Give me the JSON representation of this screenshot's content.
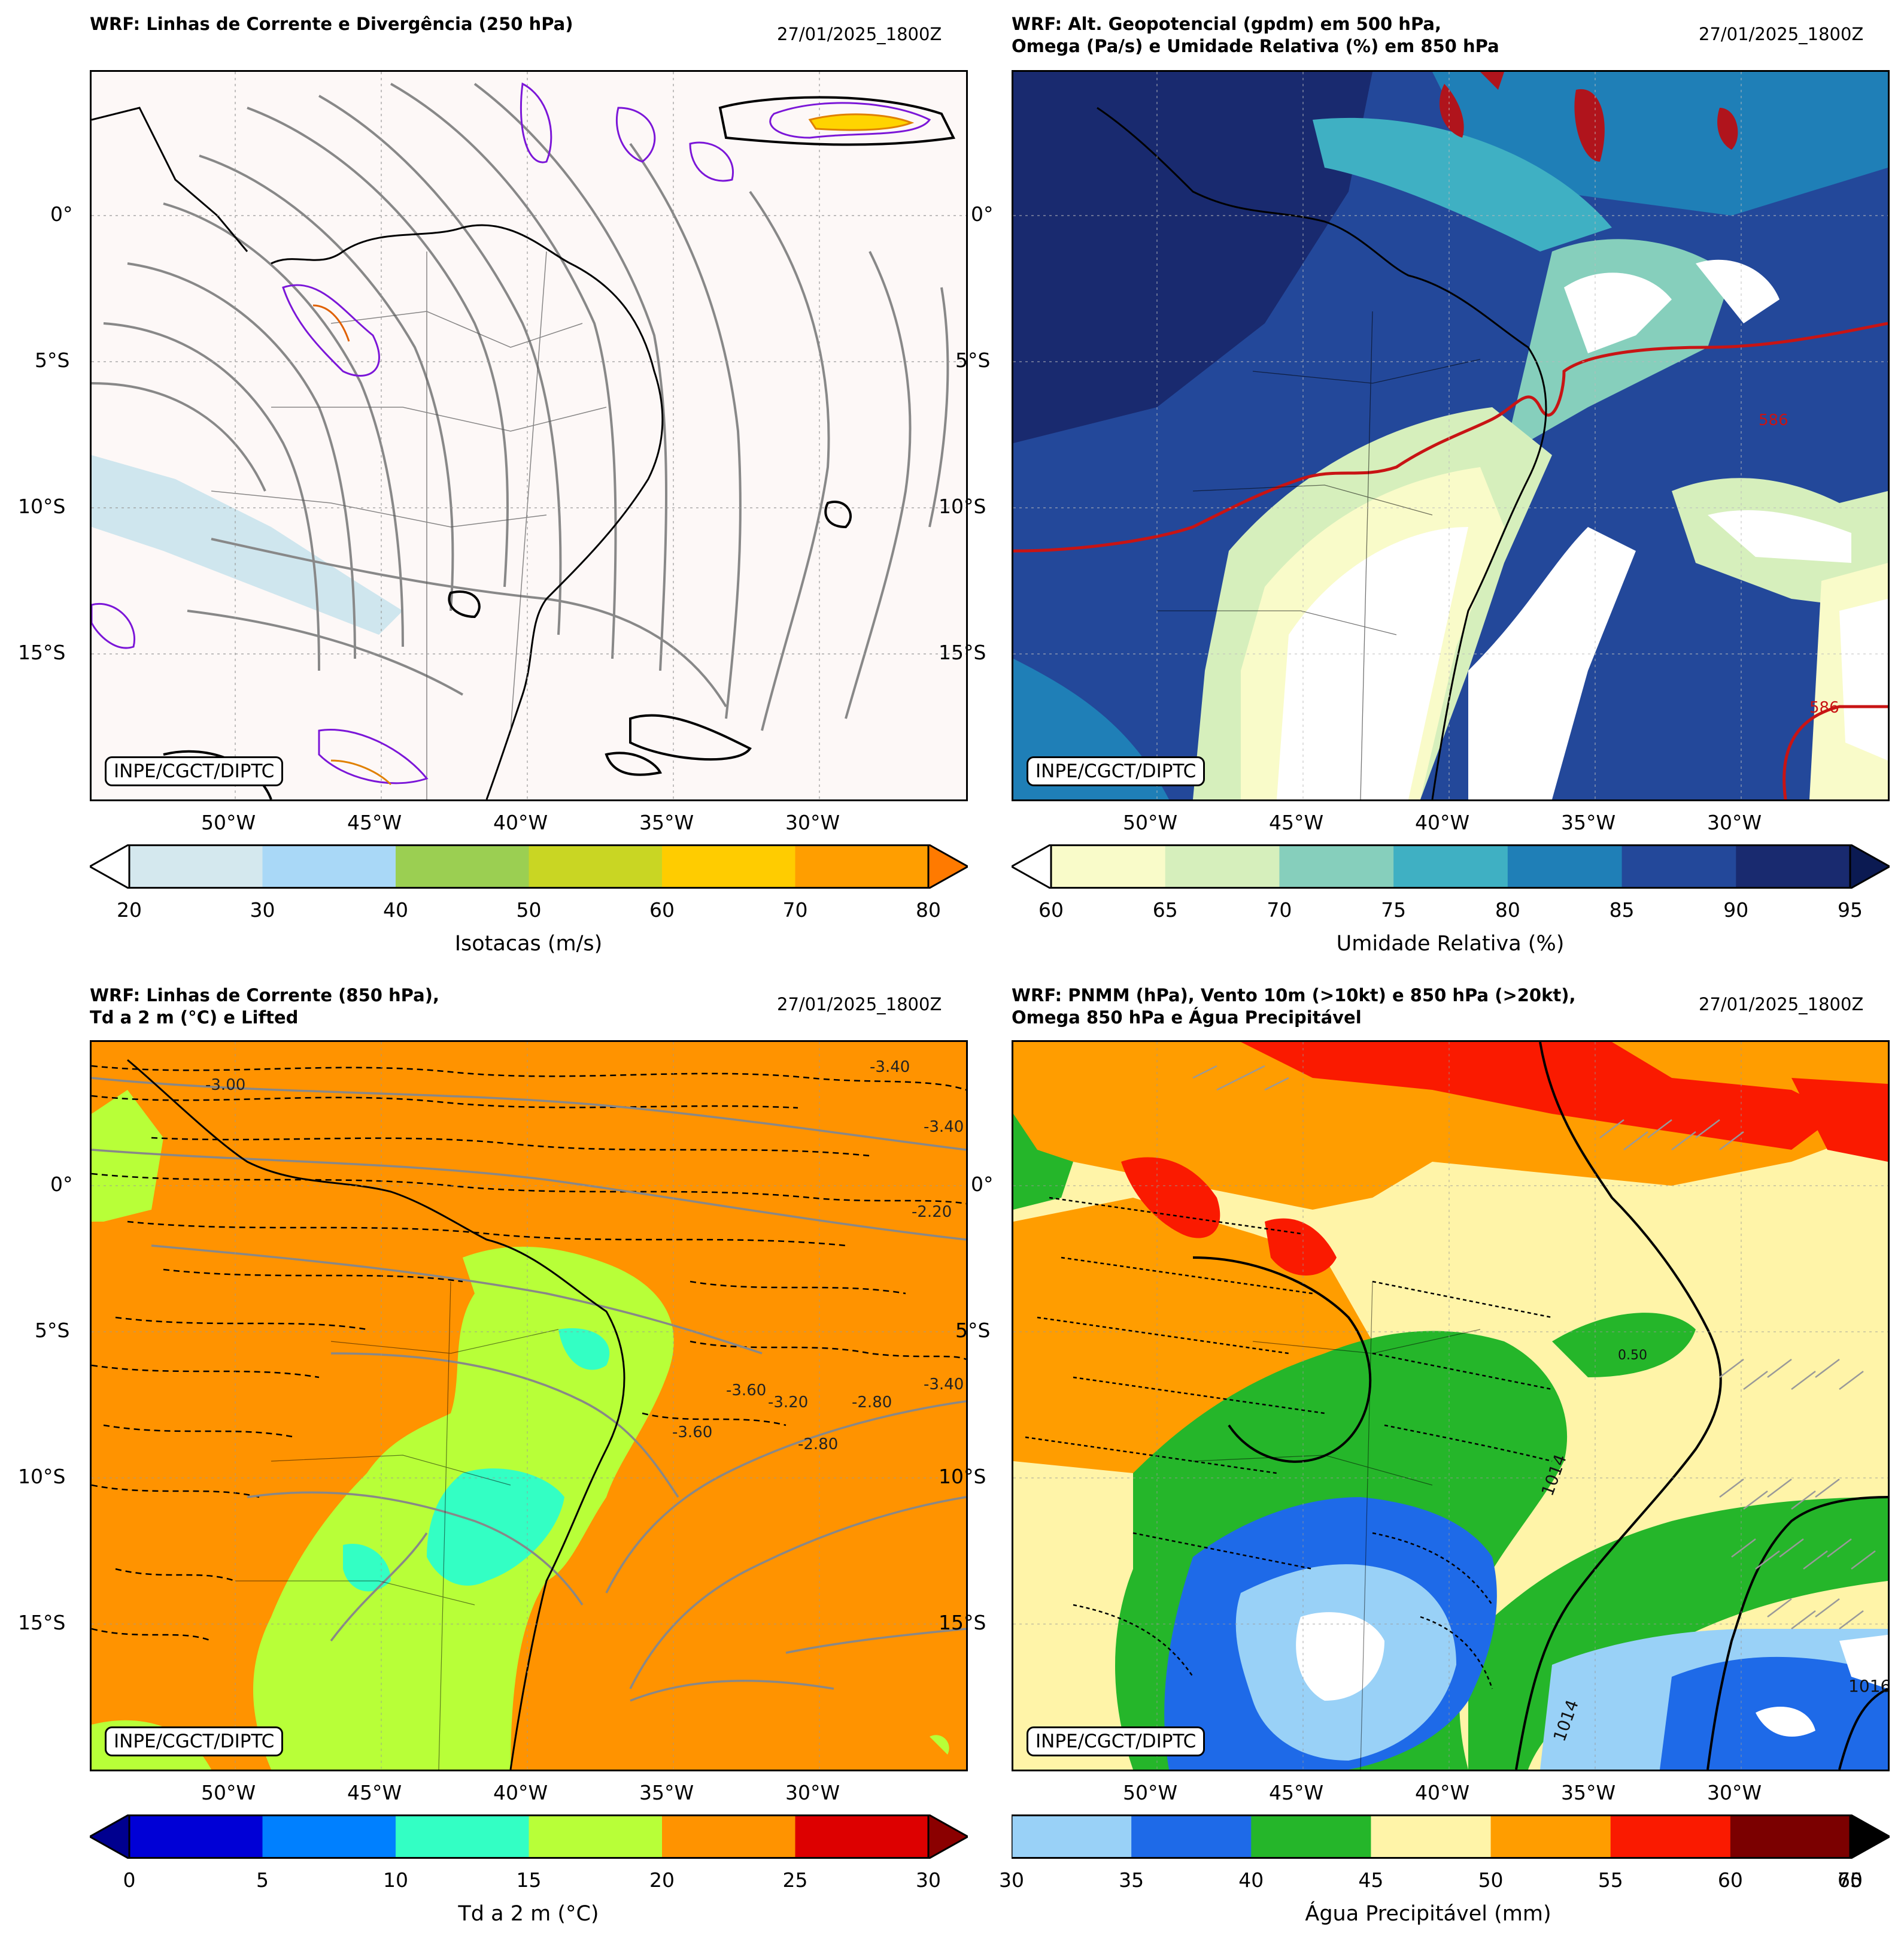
{
  "panels": [
    {
      "title": "WRF: Linhas de Corrente e Divergência (250 hPa)",
      "date": "27/01/2025_1800Z",
      "credit": "INPE/CGCT/DIPTC",
      "background": "#fdf8f7",
      "colorbar": {
        "label": "Isotacas (m/s)",
        "ticks": [
          "20",
          "30",
          "40",
          "50",
          "60",
          "70",
          "80"
        ],
        "colors": [
          "#d4e8ee",
          "#a9d8f7",
          "#9bcf52",
          "#c9d623",
          "#ffcc00",
          "#ff9e00"
        ],
        "under": "#ffffff",
        "over": "#ff7a00"
      }
    },
    {
      "title": "WRF: Alt. Geopotencial (gpdm) em 500 hPa,\nOmega (Pa/s) e Umidade Relativa (%) em 850 hPa",
      "title_line1": "WRF: Alt. Geopotencial (gpdm) em 500 hPa,",
      "title_line2": "Omega (Pa/s) e Umidade Relativa (%) em 850 hPa",
      "date": "27/01/2025_1800Z",
      "credit": "INPE/CGCT/DIPTC",
      "contour_labels": [
        "586",
        "586"
      ],
      "colorbar": {
        "label": "Umidade Relativa (%)",
        "ticks": [
          "60",
          "65",
          "70",
          "75",
          "80",
          "85",
          "90",
          "95"
        ],
        "colors": [
          "#f9fbc9",
          "#d6efbc",
          "#86cfbc",
          "#3fb0c3",
          "#1f7fb7",
          "#23489a",
          "#192a6f"
        ],
        "under": "#ffffff",
        "over": "#0b1a52"
      }
    },
    {
      "title_line1": "WRF: Linhas de Corrente (850 hPa),",
      "title_line2": "Td a 2 m (°C) e Lifted",
      "date": "27/01/2025_1800Z",
      "credit": "INPE/CGCT/DIPTC",
      "contour_labels": [
        "-3.40",
        "-2.20",
        "-3.60",
        "-2.80",
        "-3.40",
        "-3.20",
        "-2.80",
        "-3.00",
        "-3.60",
        "-3.40"
      ],
      "colorbar": {
        "label": "Td a 2 m (°C)",
        "ticks": [
          "0",
          "5",
          "10",
          "15",
          "20",
          "25",
          "30"
        ],
        "colors": [
          "#0000d6",
          "#0080ff",
          "#33ffc4",
          "#b8ff38",
          "#ff9300",
          "#dd0000"
        ],
        "under": "#00008f",
        "over": "#8b0000"
      }
    },
    {
      "title_line1": "WRF: PNMM (hPa), Vento 10m (>10kt) e 850 hPa (>20kt),",
      "title_line2": "Omega 850 hPa e Água Precipitável",
      "date": "27/01/2025_1800Z",
      "credit": "INPE/CGCT/DIPTC",
      "contour_labels": [
        "1014",
        "1016",
        "1014",
        "0.50"
      ],
      "colorbar": {
        "label": "Água Precipitável (mm)",
        "ticks": [
          "30",
          "35",
          "40",
          "45",
          "50",
          "55",
          "60"
        ],
        "end_ticks": [
          "70",
          "65"
        ],
        "colors": [
          "#99d1f7",
          "#1e6ae8",
          "#25b62a",
          "#fff4a8",
          "#ff9d00",
          "#fa1a00",
          "#7b0000"
        ],
        "over": "#000000"
      }
    }
  ],
  "axes": {
    "lat_labels": [
      "0°",
      "5°S",
      "10°S",
      "15°S"
    ],
    "lon_labels": [
      "50°W",
      "45°W",
      "40°W",
      "35°W",
      "30°W"
    ]
  }
}
